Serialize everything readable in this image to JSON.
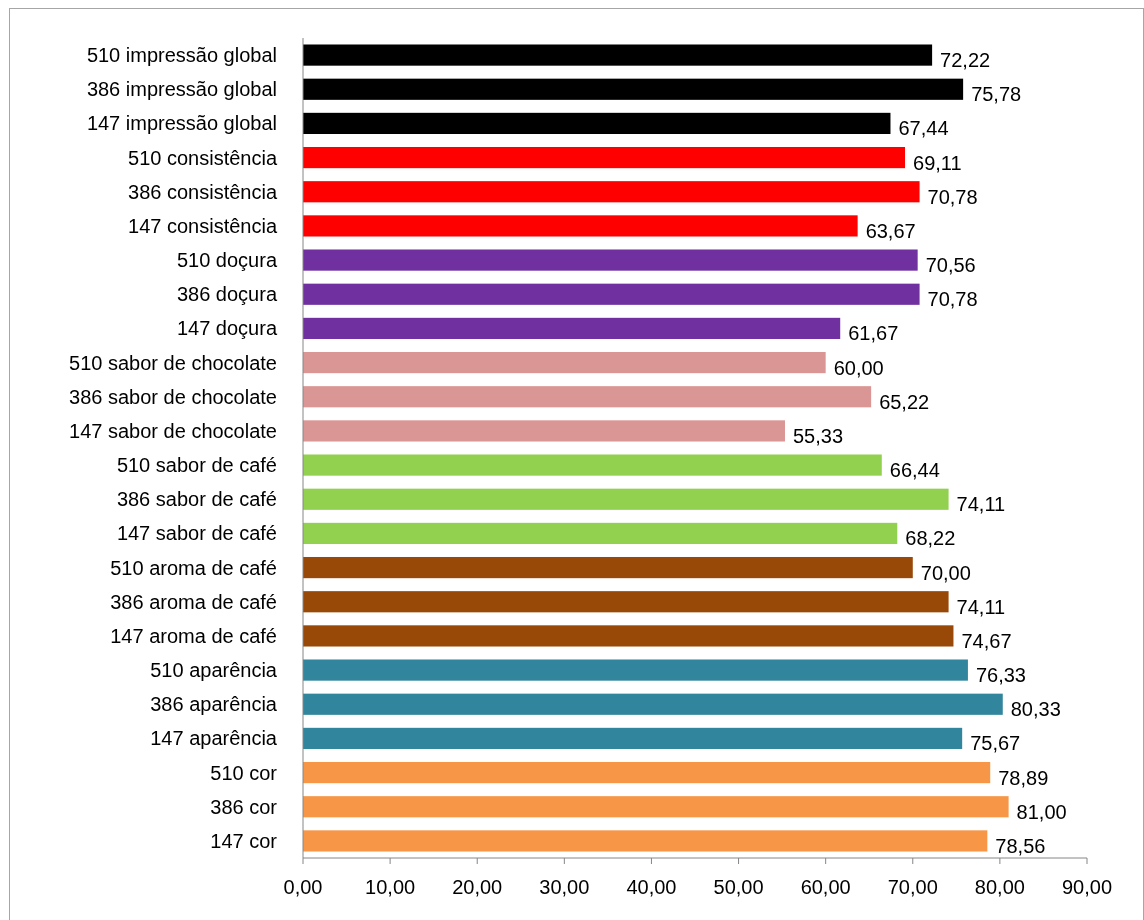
{
  "chart_data": {
    "type": "bar",
    "orientation": "horizontal",
    "categories": [
      "510 impressão global",
      "386 impressão global",
      "147 impressão global",
      "510 consistência",
      "386 consistência",
      "147 consistência",
      "510 doçura",
      "386 doçura",
      "147 doçura",
      "510 sabor de chocolate",
      "386 sabor de chocolate",
      "147 sabor de chocolate",
      "510 sabor de café",
      "386 sabor de café",
      "147 sabor de café",
      "510 aroma de café",
      "386 aroma de café",
      "147 aroma de café",
      "510 aparência",
      "386 aparência",
      "147 aparência",
      "510 cor",
      "386 cor",
      "147 cor"
    ],
    "values": [
      72.22,
      75.78,
      67.44,
      69.11,
      70.78,
      63.67,
      70.56,
      70.78,
      61.67,
      60.0,
      65.22,
      55.33,
      66.44,
      74.11,
      68.22,
      70.0,
      74.11,
      74.67,
      76.33,
      80.33,
      75.67,
      78.89,
      81.0,
      78.56
    ],
    "value_labels": [
      "72,22",
      "75,78",
      "67,44",
      "69,11",
      "70,78",
      "63,67",
      "70,56",
      "70,78",
      "61,67",
      "60,00",
      "65,22",
      "55,33",
      "66,44",
      "74,11",
      "68,22",
      "70,00",
      "74,11",
      "74,67",
      "76,33",
      "80,33",
      "75,67",
      "78,89",
      "81,00",
      "78,56"
    ],
    "colors": [
      "#000000",
      "#000000",
      "#000000",
      "#ff0000",
      "#ff0000",
      "#ff0000",
      "#7030a0",
      "#7030a0",
      "#7030a0",
      "#da9694",
      "#da9694",
      "#da9694",
      "#92d050",
      "#92d050",
      "#92d050",
      "#984807",
      "#984807",
      "#984807",
      "#31859c",
      "#31859c",
      "#31859c",
      "#f79646",
      "#f79646",
      "#f79646"
    ],
    "xlim": [
      0,
      90
    ],
    "xticks": [
      {
        "value": 0,
        "label": "0,00"
      },
      {
        "value": 10,
        "label": "10,00"
      },
      {
        "value": 20,
        "label": "20,00"
      },
      {
        "value": 30,
        "label": "30,00"
      },
      {
        "value": 40,
        "label": "40,00"
      },
      {
        "value": 50,
        "label": "50,00"
      },
      {
        "value": 60,
        "label": "60,00"
      },
      {
        "value": 70,
        "label": "70,00"
      },
      {
        "value": 80,
        "label": "80,00"
      },
      {
        "value": 90,
        "label": "90,00"
      }
    ],
    "grid": false
  }
}
